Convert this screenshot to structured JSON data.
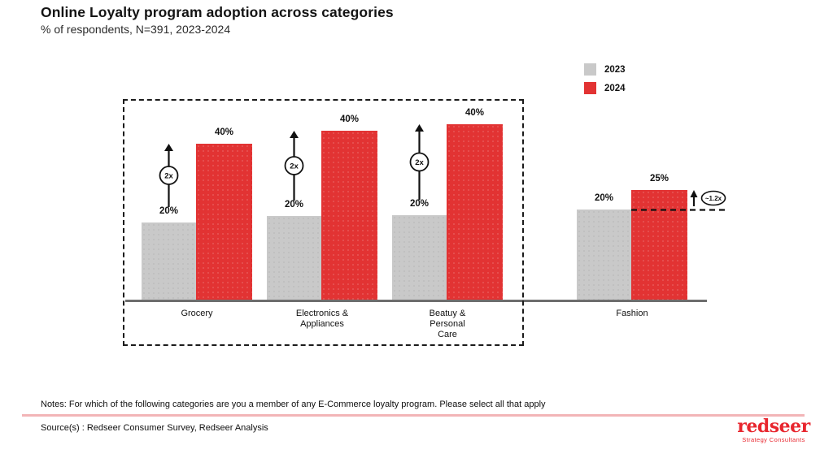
{
  "page": {
    "title": "Online Loyalty program adoption across categories",
    "subtitle": "% of respondents, N=391, 2023-2024"
  },
  "legend": {
    "items": [
      {
        "label": "2023",
        "color": "#C9C9C9"
      },
      {
        "label": "2024",
        "color": "#E23333"
      }
    ]
  },
  "chart_data": {
    "type": "bar",
    "title": "Online Loyalty program adoption across categories",
    "subtitle": "% of respondents, N=391, 2023-2024",
    "categories": [
      "Grocery",
      "Electronics &\nAppliances",
      "Beatuy &\nPersonal\nCare",
      "Fashion"
    ],
    "series": [
      {
        "name": "2023",
        "color": "#C9C9C9",
        "values": [
          20,
          20,
          20,
          20
        ]
      },
      {
        "name": "2024",
        "color": "#E23333",
        "values": [
          40,
          40,
          40,
          25
        ]
      }
    ],
    "value_suffix": "%",
    "annotations": [
      {
        "category": "Grocery",
        "label": "2x",
        "style": "circled-arrow"
      },
      {
        "category": "Electronics & Appliances",
        "label": "2x",
        "style": "circled-arrow"
      },
      {
        "category": "Beatuy & Personal Care",
        "label": "2x",
        "style": "circled-arrow"
      },
      {
        "category": "Fashion",
        "label": "~1.2x",
        "style": "ellipse-with-dashed-reference-line"
      }
    ],
    "highlight_box_categories": [
      "Grocery",
      "Electronics & Appliances",
      "Beatuy & Personal Care"
    ],
    "xlabel": "",
    "ylabel": "",
    "ylim": [
      0,
      45
    ],
    "grid": false,
    "legend_position": "top-right"
  },
  "footer": {
    "notes": "Notes: For which of the following categories are you a member of any E-Commerce loyalty program. Please select all that apply",
    "source": "Source(s) : Redseer Consumer Survey, Redseer Analysis",
    "divider_color": "#F2B5B7",
    "logo": {
      "brand": "redseer",
      "tagline": "Strategy Consultants",
      "color": "#E8262E"
    }
  }
}
